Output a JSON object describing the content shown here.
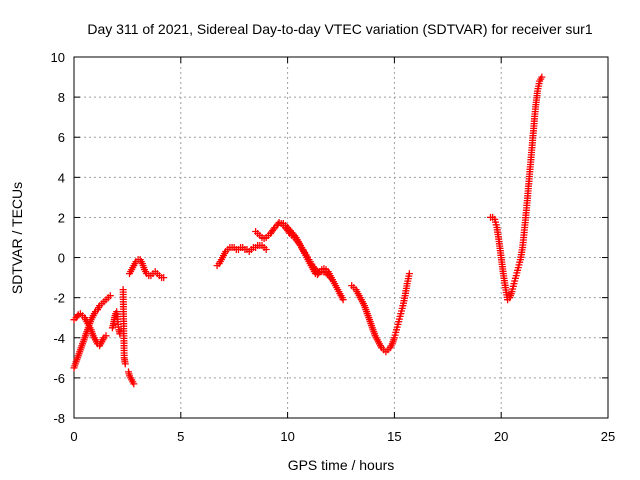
{
  "chart_data": {
    "type": "scatter",
    "title": "Day 311 of 2021, Sidereal Day-to-day VTEC variation (SDTVAR) for receiver sur1",
    "xlabel": "GPS time / hours",
    "ylabel": "SDTVAR / TECUs",
    "xlim": [
      0,
      25
    ],
    "ylim": [
      -8,
      10
    ],
    "xticks": [
      0,
      5,
      10,
      15,
      20,
      25
    ],
    "xtick_labels": [
      "0",
      "5",
      "10",
      "15",
      "20",
      "25"
    ],
    "yticks": [
      -8,
      -6,
      -4,
      -2,
      0,
      2,
      4,
      6,
      8,
      10
    ],
    "ytick_labels": [
      "-8",
      "-6",
      "-4",
      "-2",
      "0",
      "2",
      "4",
      "6",
      "8",
      "10"
    ],
    "grid": true,
    "marker": "+",
    "color": "#ff0000",
    "series": [
      {
        "name": "SDTVAR",
        "segments": [
          [
            [
              0.0,
              -3.1
            ],
            [
              0.1,
              -3.0
            ],
            [
              0.2,
              -2.85
            ],
            [
              0.3,
              -2.8
            ],
            [
              0.4,
              -2.9
            ],
            [
              0.5,
              -3.0
            ],
            [
              0.6,
              -3.2
            ],
            [
              0.7,
              -3.4
            ],
            [
              0.8,
              -3.6
            ],
            [
              0.9,
              -3.9
            ],
            [
              1.0,
              -4.1
            ],
            [
              1.1,
              -4.3
            ],
            [
              1.2,
              -4.4
            ],
            [
              1.3,
              -4.2
            ],
            [
              1.4,
              -4.0
            ],
            [
              1.5,
              -3.9
            ]
          ],
          [
            [
              0.0,
              -5.5
            ],
            [
              0.1,
              -5.2
            ],
            [
              0.2,
              -4.9
            ],
            [
              0.3,
              -4.6
            ],
            [
              0.4,
              -4.3
            ],
            [
              0.5,
              -4.0
            ],
            [
              0.6,
              -3.7
            ],
            [
              0.7,
              -3.4
            ],
            [
              0.8,
              -3.1
            ],
            [
              0.9,
              -2.9
            ],
            [
              1.0,
              -2.7
            ],
            [
              1.1,
              -2.6
            ],
            [
              1.2,
              -2.4
            ],
            [
              1.3,
              -2.3
            ],
            [
              1.4,
              -2.2
            ],
            [
              1.5,
              -2.1
            ],
            [
              1.6,
              -2.0
            ],
            [
              1.7,
              -1.9
            ]
          ],
          [
            [
              1.8,
              -3.5
            ],
            [
              1.85,
              -3.3
            ],
            [
              1.9,
              -3.0
            ],
            [
              1.95,
              -2.8
            ],
            [
              2.0,
              -2.7
            ],
            [
              2.05,
              -3.2
            ],
            [
              2.1,
              -3.6
            ],
            [
              2.15,
              -3.8
            ]
          ],
          [
            [
              2.3,
              -1.6
            ],
            [
              2.35,
              -5.0
            ],
            [
              2.4,
              -5.3
            ]
          ],
          [
            [
              2.55,
              -5.7
            ],
            [
              2.6,
              -5.9
            ],
            [
              2.65,
              -6.0
            ],
            [
              2.7,
              -6.1
            ],
            [
              2.75,
              -6.2
            ],
            [
              2.8,
              -6.3
            ]
          ],
          [
            [
              2.6,
              -0.8
            ],
            [
              2.7,
              -0.6
            ],
            [
              2.8,
              -0.4
            ],
            [
              2.9,
              -0.2
            ],
            [
              3.0,
              -0.1
            ],
            [
              3.1,
              -0.1
            ],
            [
              3.2,
              -0.3
            ],
            [
              3.3,
              -0.6
            ],
            [
              3.4,
              -0.8
            ],
            [
              3.5,
              -0.9
            ],
            [
              3.6,
              -0.9
            ],
            [
              3.7,
              -0.8
            ],
            [
              3.8,
              -0.7
            ],
            [
              3.9,
              -0.8
            ],
            [
              4.0,
              -0.9
            ],
            [
              4.1,
              -1.0
            ],
            [
              4.2,
              -1.0
            ]
          ],
          [
            [
              6.7,
              -0.4
            ],
            [
              6.8,
              -0.3
            ],
            [
              6.9,
              -0.1
            ],
            [
              7.0,
              0.1
            ],
            [
              7.1,
              0.3
            ],
            [
              7.2,
              0.4
            ],
            [
              7.3,
              0.5
            ],
            [
              7.4,
              0.5
            ],
            [
              7.5,
              0.5
            ],
            [
              7.6,
              0.4
            ],
            [
              7.7,
              0.4
            ],
            [
              7.8,
              0.5
            ],
            [
              7.9,
              0.5
            ],
            [
              8.0,
              0.4
            ],
            [
              8.1,
              0.4
            ],
            [
              8.2,
              0.3
            ],
            [
              8.3,
              0.4
            ],
            [
              8.4,
              0.5
            ],
            [
              8.5,
              0.5
            ],
            [
              8.6,
              0.6
            ],
            [
              8.7,
              0.6
            ],
            [
              8.8,
              0.6
            ],
            [
              8.9,
              0.5
            ],
            [
              9.0,
              0.4
            ]
          ],
          [
            [
              8.5,
              1.3
            ],
            [
              8.6,
              1.2
            ],
            [
              8.7,
              1.1
            ],
            [
              8.8,
              1.0
            ],
            [
              8.9,
              0.95
            ],
            [
              9.0,
              1.0
            ],
            [
              9.1,
              1.1
            ],
            [
              9.2,
              1.2
            ],
            [
              9.3,
              1.35
            ],
            [
              9.4,
              1.5
            ],
            [
              9.5,
              1.6
            ],
            [
              9.6,
              1.75
            ],
            [
              9.7,
              1.7
            ],
            [
              9.8,
              1.6
            ],
            [
              9.9,
              1.5
            ],
            [
              10.0,
              1.35
            ],
            [
              10.1,
              1.2
            ],
            [
              10.2,
              1.1
            ],
            [
              10.3,
              1.0
            ],
            [
              10.4,
              0.9
            ],
            [
              10.5,
              0.75
            ],
            [
              10.6,
              0.6
            ],
            [
              10.7,
              0.4
            ],
            [
              10.8,
              0.2
            ],
            [
              10.9,
              0.0
            ],
            [
              11.0,
              -0.2
            ],
            [
              11.1,
              -0.4
            ],
            [
              11.2,
              -0.6
            ],
            [
              11.3,
              -0.8
            ],
            [
              11.4,
              -0.85
            ],
            [
              11.5,
              -0.7
            ],
            [
              11.6,
              -0.6
            ],
            [
              11.7,
              -0.55
            ],
            [
              11.8,
              -0.6
            ],
            [
              11.9,
              -0.7
            ],
            [
              12.0,
              -0.9
            ],
            [
              12.1,
              -1.1
            ],
            [
              12.2,
              -1.3
            ],
            [
              12.3,
              -1.5
            ],
            [
              12.4,
              -1.7
            ],
            [
              12.5,
              -1.9
            ],
            [
              12.6,
              -2.1
            ]
          ],
          [
            [
              9.8,
              1.7
            ],
            [
              10.0,
              1.5
            ],
            [
              10.2,
              1.25
            ],
            [
              10.4,
              1.0
            ],
            [
              10.6,
              0.6
            ],
            [
              10.8,
              0.25
            ],
            [
              11.0,
              -0.1
            ],
            [
              11.2,
              -0.45
            ],
            [
              11.4,
              -0.7
            ],
            [
              11.6,
              -0.7
            ],
            [
              11.8,
              -0.75
            ],
            [
              12.0,
              -1.0
            ]
          ],
          [
            [
              13.0,
              -1.4
            ],
            [
              13.1,
              -1.5
            ],
            [
              13.2,
              -1.6
            ],
            [
              13.3,
              -1.8
            ],
            [
              13.4,
              -2.0
            ],
            [
              13.5,
              -2.2
            ],
            [
              13.6,
              -2.4
            ],
            [
              13.7,
              -2.7
            ],
            [
              13.8,
              -3.0
            ],
            [
              13.9,
              -3.3
            ],
            [
              14.0,
              -3.6
            ],
            [
              14.1,
              -3.9
            ],
            [
              14.2,
              -4.1
            ],
            [
              14.3,
              -4.3
            ],
            [
              14.4,
              -4.5
            ],
            [
              14.5,
              -4.6
            ],
            [
              14.6,
              -4.7
            ],
            [
              14.7,
              -4.6
            ],
            [
              14.8,
              -4.5
            ],
            [
              14.9,
              -4.3
            ],
            [
              15.0,
              -4.0
            ],
            [
              15.1,
              -3.6
            ],
            [
              15.2,
              -3.2
            ],
            [
              15.3,
              -2.8
            ],
            [
              15.4,
              -2.4
            ],
            [
              15.5,
              -1.9
            ],
            [
              15.6,
              -1.3
            ],
            [
              15.7,
              -0.8
            ]
          ],
          [
            [
              19.5,
              2.0
            ],
            [
              19.6,
              2.0
            ],
            [
              19.7,
              1.9
            ],
            [
              19.8,
              1.5
            ],
            [
              19.9,
              0.8
            ],
            [
              20.0,
              0.0
            ],
            [
              20.1,
              -0.8
            ],
            [
              20.2,
              -1.5
            ],
            [
              20.3,
              -2.1
            ],
            [
              20.4,
              -2.0
            ],
            [
              20.5,
              -1.7
            ],
            [
              20.6,
              -1.3
            ],
            [
              20.7,
              -0.9
            ],
            [
              20.8,
              -0.5
            ],
            [
              20.9,
              -0.1
            ],
            [
              21.0,
              0.5
            ],
            [
              21.1,
              1.5
            ],
            [
              21.2,
              2.6
            ],
            [
              21.3,
              3.8
            ],
            [
              21.4,
              5.0
            ],
            [
              21.5,
              6.2
            ],
            [
              21.6,
              7.4
            ],
            [
              21.7,
              8.3
            ],
            [
              21.8,
              8.8
            ],
            [
              21.9,
              9.0
            ]
          ]
        ]
      }
    ]
  }
}
